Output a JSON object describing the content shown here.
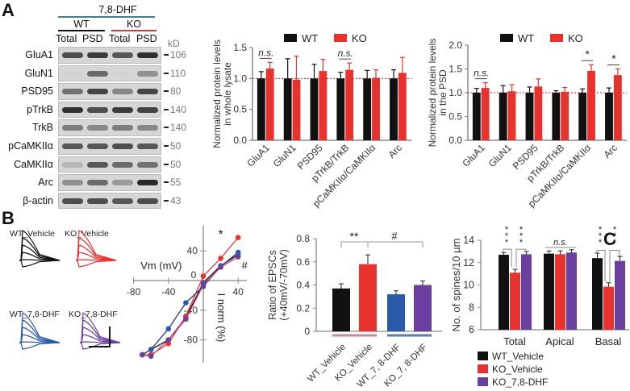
{
  "panels": {
    "a": "A",
    "b": "B",
    "c": "C"
  },
  "blot": {
    "treatment": "7,8-DHF",
    "treatment_line_color": "#4a7a8c",
    "groups": [
      {
        "label": "WT",
        "color": "#111111"
      },
      {
        "label": "KO",
        "color": "#e0393b"
      }
    ],
    "lanes": [
      "Total",
      "PSD",
      "Total",
      "PSD"
    ],
    "unit": "kD",
    "rows": [
      {
        "protein": "GluA1",
        "kd": "106"
      },
      {
        "protein": "GluN1",
        "kd": "110"
      },
      {
        "protein": "PSD95",
        "kd": "80"
      },
      {
        "protein": "pTrkB",
        "kd": "140"
      },
      {
        "protein": "TrkB",
        "kd": "140"
      },
      {
        "protein": "pCaMKIIα",
        "kd": "50"
      },
      {
        "protein": "CaMKIIα",
        "kd": "50"
      },
      {
        "protein": "Arc",
        "kd": "55"
      },
      {
        "protein": "β-actin",
        "kd": "43"
      }
    ]
  },
  "colors": {
    "wt": "#111111",
    "ko": "#e8322e",
    "wt_dhf": "#2a5aa8",
    "ko_dhf": "#6a3fa0",
    "ref_line": "#cc2222"
  },
  "chart_data": [
    {
      "id": "lysate",
      "type": "bar",
      "title": "",
      "ylabel": "Normalized protein levels in whole lysate",
      "xlabel": "",
      "ylim": [
        0,
        1.5
      ],
      "yticks": [
        "0.0",
        "0.5",
        "1.0",
        "1.5"
      ],
      "categories": [
        "GluA1",
        "GluN1",
        "PSD95",
        "pTrkB/TrkB",
        "pCaMKIIα/CaMKIIα",
        "Arc"
      ],
      "series": [
        {
          "name": "WT",
          "values": [
            1.0,
            1.0,
            1.0,
            1.0,
            1.0,
            1.0
          ],
          "errors": [
            0.11,
            0.32,
            0.23,
            0.1,
            0.13,
            0.14
          ]
        },
        {
          "name": "KO",
          "values": [
            1.16,
            0.98,
            1.12,
            1.14,
            1.01,
            1.09
          ],
          "errors": [
            0.1,
            0.38,
            0.19,
            0.11,
            0.13,
            0.25
          ]
        }
      ],
      "reference_line": 1.0,
      "legend": "top",
      "annotations": [
        {
          "category": "GluA1",
          "text": "n.s."
        },
        {
          "category": "pTrkB/TrkB",
          "text": "n.s."
        }
      ]
    },
    {
      "id": "psd",
      "type": "bar",
      "title": "",
      "ylabel": "Normalized protein levels in the PSD",
      "xlabel": "",
      "ylim": [
        0,
        2.0
      ],
      "yticks": [
        "0.0",
        "0.5",
        "1.0",
        "1.5",
        "2.0"
      ],
      "categories": [
        "GluA1",
        "GluN1",
        "PSD95",
        "pTrkB/TrkB",
        "pCaMKIIα/CaMKIIα",
        "Arc"
      ],
      "series": [
        {
          "name": "WT",
          "values": [
            1.0,
            1.0,
            1.0,
            1.0,
            1.0,
            1.0
          ],
          "errors": [
            0.09,
            0.15,
            0.12,
            0.04,
            0.08,
            0.1
          ]
        },
        {
          "name": "KO",
          "values": [
            1.1,
            1.03,
            1.13,
            1.02,
            1.46,
            1.37
          ],
          "errors": [
            0.11,
            0.14,
            0.16,
            0.09,
            0.13,
            0.13
          ]
        }
      ],
      "reference_line": 1.0,
      "legend": "top",
      "annotations": [
        {
          "category": "GluA1",
          "text": "n.s."
        },
        {
          "category": "pCaMKIIα/CaMKIIα",
          "text": "*"
        },
        {
          "category": "Arc",
          "text": "*"
        }
      ]
    },
    {
      "id": "iv",
      "type": "line",
      "title": "",
      "xlabel": "Vm (mV)",
      "ylabel": "I norm (%)",
      "xlim": [
        -80,
        50
      ],
      "ylim": [
        -120,
        80
      ],
      "xticks": [
        "-80",
        "-40",
        "0",
        "40"
      ],
      "yticks": [
        "-120",
        "-80",
        "-40",
        "0",
        "40",
        "80"
      ],
      "x": [
        -70,
        -60,
        -40,
        -20,
        0,
        20,
        40
      ],
      "series": [
        {
          "name": "WT_Vehicle",
          "values": [
            -100,
            -93,
            -80,
            -50,
            -3,
            20,
            35
          ]
        },
        {
          "name": "KO_Vehicle",
          "values": [
            -100,
            -100,
            -85,
            -48,
            6,
            30,
            58
          ]
        },
        {
          "name": "WT_7,8-DHF",
          "values": [
            -100,
            -93,
            -65,
            -30,
            -8,
            19,
            38
          ]
        },
        {
          "name": "KO_7,8-DHF",
          "values": [
            -100,
            -102,
            -80,
            -52,
            -6,
            18,
            32
          ]
        }
      ],
      "annotations": [
        {
          "x": 20,
          "text": "*"
        },
        {
          "x": 40,
          "text": "**"
        },
        {
          "x": 40,
          "text": "#"
        }
      ]
    },
    {
      "id": "epsc",
      "type": "bar",
      "title": "",
      "ylabel": "Ratio of EPSCs (+40mV/-70mV)",
      "xlabel": "",
      "ylim": [
        0,
        0.8
      ],
      "yticks": [
        "0",
        "0.2",
        "0.4",
        "0.6",
        "0.8"
      ],
      "categories": [
        "WT_Vehicle",
        "KO_Vehicle",
        "WT_7, 8-DHF",
        "KO_7, 8-DHF"
      ],
      "values": [
        0.37,
        0.58,
        0.32,
        0.4
      ],
      "errors": [
        0.04,
        0.08,
        0.03,
        0.035
      ],
      "annotations": [
        {
          "between": [
            "WT_Vehicle",
            "KO_Vehicle"
          ],
          "text": "**"
        },
        {
          "between": [
            "KO_Vehicle",
            "KO_7, 8-DHF"
          ],
          "text": "#"
        }
      ]
    },
    {
      "id": "spines",
      "type": "bar",
      "title": "",
      "ylabel": "No. of spines/10 µm",
      "xlabel": "",
      "ylim": [
        6,
        14
      ],
      "yticks": [
        "6",
        "8",
        "10",
        "12",
        "14"
      ],
      "categories": [
        "Total",
        "Apical",
        "Basal"
      ],
      "series": [
        {
          "name": "WT_Vehicle",
          "values": [
            12.7,
            12.8,
            12.4
          ],
          "errors": [
            0.2,
            0.25,
            0.45
          ]
        },
        {
          "name": "KO_Vehicle",
          "values": [
            11.1,
            12.75,
            9.85
          ],
          "errors": [
            0.3,
            0.3,
            0.35
          ]
        },
        {
          "name": "KO_7,8-DHF",
          "values": [
            12.75,
            12.9,
            12.15
          ],
          "errors": [
            0.25,
            0.25,
            0.4
          ]
        }
      ],
      "legend": "bottom",
      "annotations": [
        {
          "category": "Total",
          "text": "***"
        },
        {
          "category": "Total",
          "text": "***"
        },
        {
          "category": "Apical",
          "text": "n.s."
        },
        {
          "category": "Basal",
          "text": "***"
        },
        {
          "category": "Basal",
          "text": "***"
        }
      ]
    }
  ],
  "traces": {
    "labels": [
      "WT_Vehicle",
      "KO_Vehicle",
      "WT_7,8-DHF",
      "KO_7,8-DHF"
    ]
  }
}
